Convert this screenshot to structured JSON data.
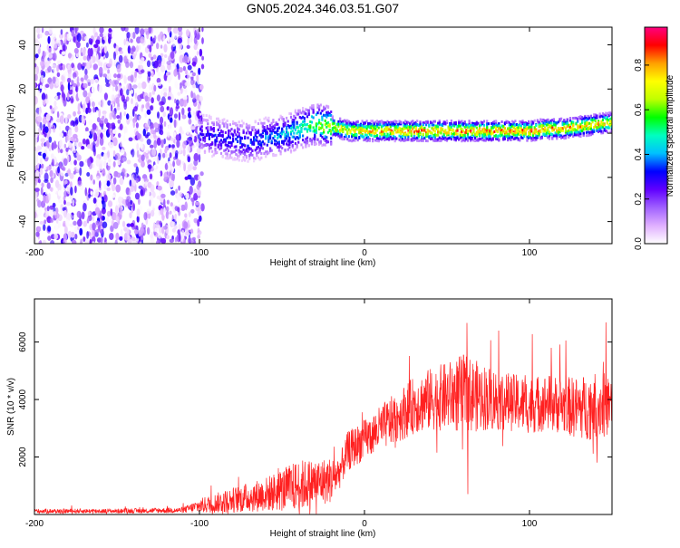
{
  "title": "GN05.2024.346.03.51.G07",
  "chart_data": [
    {
      "type": "heatmap",
      "xlabel": "Height of straight line (km)",
      "ylabel": "Frequency (Hz)",
      "xlim": [
        -200,
        150
      ],
      "ylim": [
        -50,
        48
      ],
      "xticks": [
        "-200",
        "-100",
        "0",
        "100"
      ],
      "yticks": [
        "-40",
        "-20",
        "0",
        "20",
        "40"
      ],
      "colorbar": {
        "label": "Normalized spectral amplitude",
        "range": [
          0,
          0.97
        ],
        "ticks": [
          "0.0",
          "0.2",
          "0.4",
          "0.6",
          "0.8"
        ],
        "colors": [
          "#ffffff",
          "#e0b0ff",
          "#a060ff",
          "#6000ff",
          "#0000ff",
          "#00c0ff",
          "#00ffc0",
          "#00ff00",
          "#c0ff00",
          "#ffff00",
          "#ffa000",
          "#ff0000",
          "#ff0080"
        ]
      },
      "noise_region_x": [
        -200,
        -98
      ],
      "ridge": {
        "x": [
          -100,
          -90,
          -80,
          -70,
          -60,
          -50,
          -40,
          -30,
          -20,
          -10,
          0,
          20,
          40,
          60,
          80,
          100,
          110,
          120,
          130,
          140,
          150
        ],
        "freq": [
          0,
          -2,
          -3,
          -4,
          -2,
          -1,
          2,
          4,
          3,
          1,
          1,
          1,
          1,
          1,
          1,
          1,
          2,
          2,
          3,
          4,
          5
        ],
        "amp": [
          0.3,
          0.35,
          0.35,
          0.38,
          0.4,
          0.45,
          0.55,
          0.65,
          0.75,
          0.82,
          0.85,
          0.88,
          0.9,
          0.9,
          0.9,
          0.9,
          0.88,
          0.88,
          0.85,
          0.85,
          0.8
        ]
      }
    },
    {
      "type": "line",
      "xlabel": "Height of straight line (km)",
      "ylabel": "SNR (10 * v/v)",
      "xlim": [
        -200,
        150
      ],
      "ylim": [
        0,
        7500
      ],
      "xticks": [
        "-200",
        "-100",
        "0",
        "100"
      ],
      "yticks": [
        "2000",
        "4000",
        "6000"
      ],
      "line_color": "#ff2020",
      "envelope": {
        "x": [
          -200,
          -150,
          -110,
          -100,
          -80,
          -60,
          -40,
          -20,
          -15,
          -10,
          0,
          10,
          20,
          30,
          40,
          50,
          60,
          70,
          80,
          90,
          100,
          110,
          120,
          130,
          140,
          150
        ],
        "mean": [
          120,
          120,
          150,
          300,
          500,
          700,
          1000,
          1200,
          1500,
          2200,
          2600,
          3000,
          3400,
          3800,
          4000,
          4100,
          4200,
          4100,
          4000,
          3900,
          3800,
          3900,
          3800,
          3700,
          3800,
          3800
        ],
        "spread": [
          80,
          80,
          100,
          250,
          450,
          600,
          900,
          800,
          600,
          700,
          700,
          800,
          900,
          1000,
          1100,
          1200,
          1400,
          1200,
          1100,
          1000,
          1000,
          1000,
          1000,
          1100,
          1200,
          1100
        ]
      }
    }
  ]
}
